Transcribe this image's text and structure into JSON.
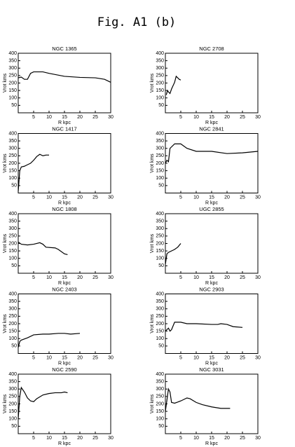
{
  "figure_title": "Fig. A1 (b)",
  "chart_data": [
    {
      "type": "line",
      "title": "NGC 1365",
      "x_label": "R kpc",
      "y_label": "Vrot kms",
      "color": "#000000",
      "xlim": [
        0,
        30
      ],
      "ylim": [
        0,
        400
      ],
      "xticks": [
        5,
        10,
        15,
        20,
        25,
        30
      ],
      "yticks": [
        50,
        100,
        150,
        200,
        250,
        300,
        350,
        400
      ],
      "x": [
        0,
        1,
        2,
        3,
        4,
        5,
        8,
        10,
        15,
        20,
        25,
        28,
        30
      ],
      "values": [
        235,
        240,
        225,
        225,
        265,
        275,
        275,
        265,
        245,
        238,
        235,
        225,
        205
      ]
    },
    {
      "type": "line",
      "title": "NGC 2708",
      "x_label": "R kpc",
      "y_label": "Vrot kms",
      "color": "#000000",
      "xlim": [
        0,
        30
      ],
      "ylim": [
        0,
        400
      ],
      "xticks": [
        5,
        10,
        15,
        20,
        25,
        30
      ],
      "yticks": [
        50,
        100,
        150,
        200,
        250,
        300,
        350,
        400
      ],
      "x": [
        0.3,
        0.7,
        1,
        1.5,
        2,
        3,
        3.5,
        4,
        4.5,
        5
      ],
      "values": [
        120,
        150,
        140,
        130,
        160,
        205,
        245,
        235,
        225,
        220
      ]
    },
    {
      "type": "line",
      "title": "NGC 1417",
      "x_label": "R kpc",
      "y_label": "Vrot kms",
      "color": "#000000",
      "xlim": [
        0,
        30
      ],
      "ylim": [
        0,
        400
      ],
      "xticks": [
        5,
        10,
        15,
        20,
        25,
        30
      ],
      "yticks": [
        50,
        100,
        150,
        200,
        250,
        300,
        350,
        400
      ],
      "x": [
        0,
        0.5,
        1,
        2,
        3,
        4,
        5,
        6,
        7,
        8,
        9,
        10
      ],
      "values": [
        10,
        150,
        175,
        180,
        190,
        200,
        220,
        245,
        260,
        250,
        255,
        255
      ]
    },
    {
      "type": "line",
      "title": "NGC 2841",
      "x_label": "R kpc",
      "y_label": "Vrot kms",
      "color": "#000000",
      "xlim": [
        0,
        30
      ],
      "ylim": [
        0,
        400
      ],
      "xticks": [
        5,
        10,
        15,
        20,
        25,
        30
      ],
      "yticks": [
        50,
        100,
        150,
        200,
        250,
        300,
        350,
        400
      ],
      "x": [
        0,
        0.5,
        1,
        1.5,
        3,
        5,
        7,
        10,
        15,
        20,
        25,
        30
      ],
      "values": [
        200,
        220,
        210,
        300,
        330,
        330,
        300,
        280,
        280,
        265,
        270,
        280
      ]
    },
    {
      "type": "line",
      "title": "NGC 1808",
      "x_label": "R kpc",
      "y_label": "Vrot kms",
      "color": "#000000",
      "xlim": [
        0,
        30
      ],
      "ylim": [
        0,
        400
      ],
      "xticks": [
        5,
        10,
        15,
        20,
        25,
        30
      ],
      "yticks": [
        50,
        100,
        150,
        200,
        250,
        300,
        350,
        400
      ],
      "x": [
        0,
        1,
        3,
        5,
        7,
        8,
        9,
        12,
        13,
        15,
        16
      ],
      "values": [
        210,
        195,
        190,
        195,
        205,
        195,
        175,
        170,
        160,
        130,
        125
      ]
    },
    {
      "type": "line",
      "title": "UGC 2855",
      "x_label": "R kpc",
      "y_label": "Vrot kms",
      "color": "#000000",
      "xlim": [
        0,
        30
      ],
      "ylim": [
        0,
        400
      ],
      "xticks": [
        5,
        10,
        15,
        20,
        25,
        30
      ],
      "yticks": [
        50,
        100,
        150,
        200,
        250,
        300,
        350,
        400
      ],
      "x": [
        0,
        0.5,
        1,
        2,
        3,
        4,
        5
      ],
      "values": [
        60,
        130,
        140,
        150,
        160,
        175,
        200
      ]
    },
    {
      "type": "line",
      "title": "NGC 2403",
      "x_label": "R kpc",
      "y_label": "Vrot kms",
      "color": "#000000",
      "xlim": [
        0,
        30
      ],
      "ylim": [
        0,
        400
      ],
      "xticks": [
        5,
        10,
        15,
        20,
        25,
        30
      ],
      "yticks": [
        50,
        100,
        150,
        200,
        250,
        300,
        350,
        400
      ],
      "x": [
        0,
        0.5,
        1,
        3,
        5,
        8,
        10,
        13,
        15,
        17,
        20
      ],
      "values": [
        40,
        80,
        90,
        105,
        125,
        130,
        130,
        135,
        135,
        130,
        135
      ]
    },
    {
      "type": "line",
      "title": "NGC 2903",
      "x_label": "R kpc",
      "y_label": "Vrot kms",
      "color": "#000000",
      "xlim": [
        0,
        30
      ],
      "ylim": [
        0,
        400
      ],
      "xticks": [
        5,
        10,
        15,
        20,
        25,
        30
      ],
      "yticks": [
        50,
        100,
        150,
        200,
        250,
        300,
        350,
        400
      ],
      "x": [
        0,
        1,
        1.5,
        2,
        3,
        5,
        7,
        10,
        15,
        17,
        18,
        20,
        22,
        25
      ],
      "values": [
        150,
        170,
        150,
        160,
        210,
        210,
        200,
        200,
        195,
        195,
        200,
        195,
        180,
        175
      ]
    },
    {
      "type": "line",
      "title": "NGC 2590",
      "x_label": "R kpc",
      "y_label": "Vrot kms",
      "color": "#000000",
      "xlim": [
        0,
        30
      ],
      "ylim": [
        0,
        400
      ],
      "xticks": [
        5,
        10,
        15,
        20,
        25,
        30
      ],
      "yticks": [
        50,
        100,
        150,
        200,
        250,
        300,
        350,
        400
      ],
      "x": [
        0,
        0.5,
        1,
        2,
        3,
        4,
        5,
        6,
        8,
        10,
        12,
        14,
        15,
        16
      ],
      "values": [
        100,
        250,
        310,
        280,
        240,
        220,
        215,
        235,
        260,
        270,
        275,
        275,
        280,
        275
      ]
    },
    {
      "type": "line",
      "title": "NGC 3031",
      "x_label": "R kpc",
      "y_label": "Vrot kms",
      "color": "#000000",
      "xlim": [
        0,
        30
      ],
      "ylim": [
        0,
        400
      ],
      "xticks": [
        5,
        10,
        15,
        20,
        25,
        30
      ],
      "yticks": [
        50,
        100,
        150,
        200,
        250,
        300,
        350,
        400
      ],
      "x": [
        0,
        1,
        1.5,
        2,
        3,
        5,
        7,
        8,
        10,
        12,
        15,
        18,
        21
      ],
      "values": [
        150,
        300,
        280,
        210,
        205,
        220,
        240,
        235,
        210,
        195,
        180,
        170,
        170
      ]
    }
  ]
}
